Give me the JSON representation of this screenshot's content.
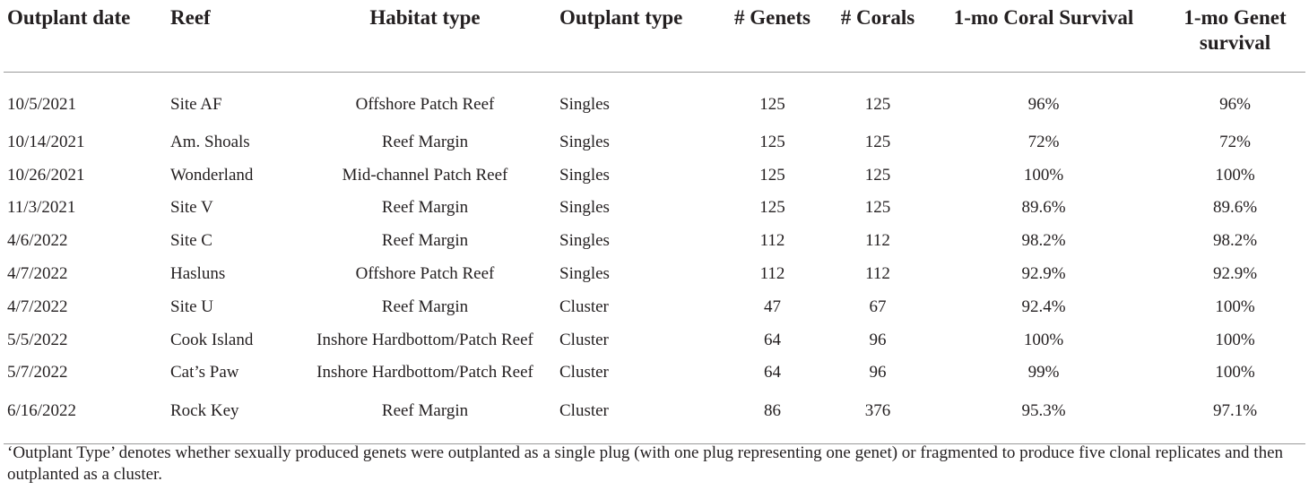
{
  "table": {
    "headers": {
      "date": "Outplant date",
      "reef": "Reef",
      "habitat": "Habitat type",
      "outplant_type": "Outplant type",
      "genets": "# Genets",
      "corals": "# Corals",
      "coral_survival": "1-mo Coral Survival",
      "genet_survival_line1": "1-mo Genet",
      "genet_survival_line2": "survival"
    },
    "rows": [
      {
        "date": "10/5/2021",
        "reef": "Site AF",
        "habitat": "Offshore Patch Reef",
        "type": "Singles",
        "genets": "125",
        "corals": "125",
        "coral_survival": "96%",
        "genet_survival": "96%"
      },
      {
        "date": "10/14/2021",
        "reef": "Am. Shoals",
        "habitat": "Reef Margin",
        "type": "Singles",
        "genets": "125",
        "corals": "125",
        "coral_survival": "72%",
        "genet_survival": "72%"
      },
      {
        "date": "10/26/2021",
        "reef": "Wonderland",
        "habitat": "Mid-channel Patch Reef",
        "type": "Singles",
        "genets": "125",
        "corals": "125",
        "coral_survival": "100%",
        "genet_survival": "100%"
      },
      {
        "date": "11/3/2021",
        "reef": "Site V",
        "habitat": "Reef Margin",
        "type": "Singles",
        "genets": "125",
        "corals": "125",
        "coral_survival": "89.6%",
        "genet_survival": "89.6%"
      },
      {
        "date": "4/6/2022",
        "reef": "Site C",
        "habitat": "Reef Margin",
        "type": "Singles",
        "genets": "112",
        "corals": "112",
        "coral_survival": "98.2%",
        "genet_survival": "98.2%"
      },
      {
        "date": "4/7/2022",
        "reef": "Hasluns",
        "habitat": "Offshore Patch Reef",
        "type": "Singles",
        "genets": "112",
        "corals": "112",
        "coral_survival": "92.9%",
        "genet_survival": "92.9%"
      },
      {
        "date": "4/7/2022",
        "reef": "Site U",
        "habitat": "Reef Margin",
        "type": "Cluster",
        "genets": "47",
        "corals": "67",
        "coral_survival": "92.4%",
        "genet_survival": "100%"
      },
      {
        "date": "5/5/2022",
        "reef": "Cook Island",
        "habitat": "Inshore Hardbottom/Patch Reef",
        "type": "Cluster",
        "genets": "64",
        "corals": "96",
        "coral_survival": "100%",
        "genet_survival": "100%"
      },
      {
        "date": "5/7/2022",
        "reef": "Cat’s Paw",
        "habitat": "Inshore Hardbottom/Patch Reef",
        "type": "Cluster",
        "genets": "64",
        "corals": "96",
        "coral_survival": "99%",
        "genet_survival": "100%"
      },
      {
        "date": "6/16/2022",
        "reef": "Rock Key",
        "habitat": "Reef Margin",
        "type": "Cluster",
        "genets": "86",
        "corals": "376",
        "coral_survival": "95.3%",
        "genet_survival": "97.1%"
      }
    ]
  },
  "footnote": "‘Outplant Type’ denotes whether sexually produced genets were outplanted as a single plug (with one plug representing one genet) or fragmented to produce five clonal replicates and then outplanted as a cluster."
}
